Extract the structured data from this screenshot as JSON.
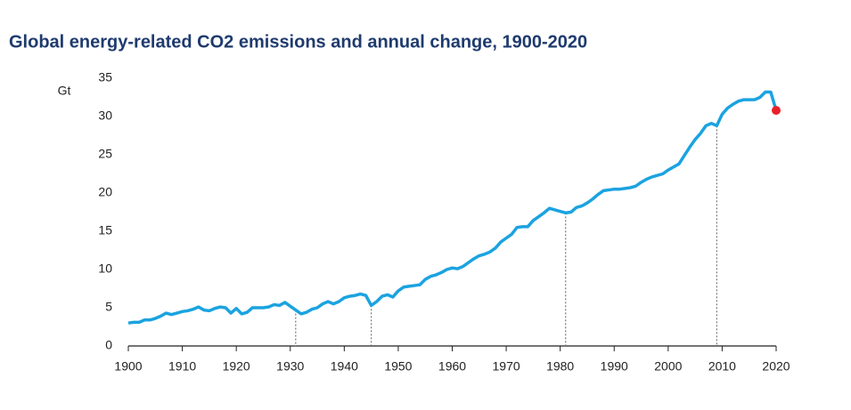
{
  "chart_data": {
    "type": "line",
    "title": "Global energy-related CO2 emissions and annual change, 1900-2020",
    "y_label": "Gt",
    "x": [
      1900,
      1901,
      1902,
      1903,
      1904,
      1905,
      1906,
      1907,
      1908,
      1909,
      1910,
      1911,
      1912,
      1913,
      1914,
      1915,
      1916,
      1917,
      1918,
      1919,
      1920,
      1921,
      1922,
      1923,
      1924,
      1925,
      1926,
      1927,
      1928,
      1929,
      1930,
      1931,
      1932,
      1933,
      1934,
      1935,
      1936,
      1937,
      1938,
      1939,
      1940,
      1941,
      1942,
      1943,
      1944,
      1945,
      1946,
      1947,
      1948,
      1949,
      1950,
      1951,
      1952,
      1953,
      1954,
      1955,
      1956,
      1957,
      1958,
      1959,
      1960,
      1961,
      1962,
      1963,
      1964,
      1965,
      1966,
      1967,
      1968,
      1969,
      1970,
      1971,
      1972,
      1973,
      1974,
      1975,
      1976,
      1977,
      1978,
      1979,
      1980,
      1981,
      1982,
      1983,
      1984,
      1985,
      1986,
      1987,
      1988,
      1989,
      1990,
      1991,
      1992,
      1993,
      1994,
      1995,
      1996,
      1997,
      1998,
      1999,
      2000,
      2001,
      2002,
      2003,
      2004,
      2005,
      2006,
      2007,
      2008,
      2009,
      2010,
      2011,
      2012,
      2013,
      2014,
      2015,
      2016,
      2017,
      2018,
      2019,
      2020
    ],
    "series": [
      {
        "name": "CO2 emissions",
        "color": "#1ba3e0",
        "values": [
          3.0,
          3.1,
          3.1,
          3.4,
          3.4,
          3.6,
          3.9,
          4.3,
          4.1,
          4.3,
          4.5,
          4.6,
          4.8,
          5.1,
          4.7,
          4.6,
          4.9,
          5.1,
          5.0,
          4.3,
          4.9,
          4.2,
          4.4,
          5.0,
          5.0,
          5.0,
          5.1,
          5.4,
          5.3,
          5.7,
          5.2,
          4.7,
          4.2,
          4.4,
          4.8,
          5.0,
          5.5,
          5.8,
          5.5,
          5.8,
          6.3,
          6.5,
          6.6,
          6.8,
          6.6,
          5.3,
          5.8,
          6.5,
          6.7,
          6.4,
          7.2,
          7.7,
          7.8,
          7.9,
          8.0,
          8.7,
          9.1,
          9.3,
          9.6,
          10.0,
          10.2,
          10.1,
          10.4,
          10.9,
          11.4,
          11.8,
          12.0,
          12.3,
          12.8,
          13.6,
          14.1,
          14.6,
          15.5,
          15.6,
          15.6,
          16.4,
          16.9,
          17.4,
          18.0,
          17.8,
          17.6,
          17.4,
          17.5,
          18.1,
          18.3,
          18.7,
          19.2,
          19.8,
          20.3,
          20.4,
          20.5,
          20.5,
          20.6,
          20.7,
          20.9,
          21.4,
          21.8,
          22.1,
          22.3,
          22.5,
          23.0,
          23.4,
          23.8,
          24.9,
          26.0,
          27.0,
          27.8,
          28.8,
          29.1,
          28.8,
          30.3,
          31.1,
          31.6,
          32.0,
          32.2,
          32.2,
          32.2,
          32.5,
          33.2,
          33.2,
          30.8
        ]
      }
    ],
    "reference_lines": [
      1931,
      1945,
      1981,
      2009
    ],
    "highlight_last": true,
    "highlight_color": "#e8202a",
    "xlim": [
      1900,
      2020
    ],
    "xticks": [
      1900,
      1910,
      1920,
      1930,
      1940,
      1950,
      1960,
      1970,
      1980,
      1990,
      2000,
      2010,
      2020
    ],
    "ylim": [
      0,
      35
    ],
    "yticks": [
      0,
      5,
      10,
      15,
      20,
      25,
      30,
      35
    ],
    "grid": false
  }
}
